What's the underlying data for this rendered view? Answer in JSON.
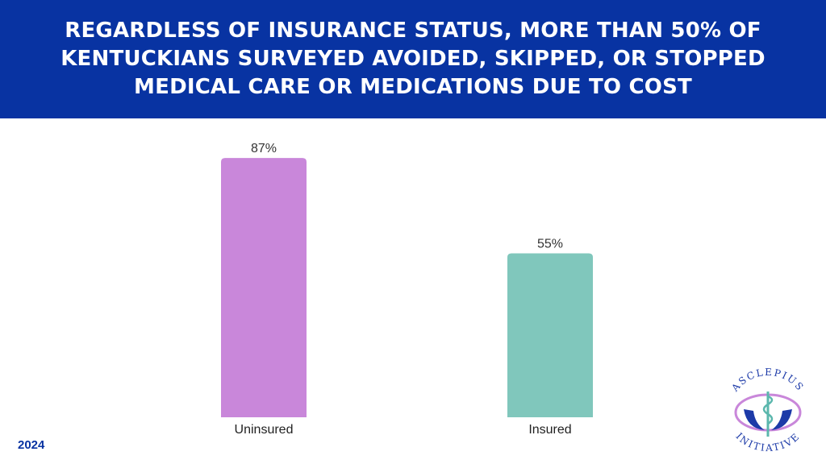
{
  "header": {
    "title": "REGARDLESS OF INSURANCE STATUS, MORE THAN 50% OF KENTUCKIANS SURVEYED AVOIDED, SKIPPED, OR STOPPED MEDICAL CARE OR MEDICATIONS DUE TO COST"
  },
  "chart_data": {
    "type": "bar",
    "categories": [
      "Uninsured",
      "Insured"
    ],
    "values": [
      87,
      55
    ],
    "value_labels": [
      "87%",
      "55%"
    ],
    "colors": [
      "#c987da",
      "#80c7bc"
    ],
    "ylim": [
      0,
      100
    ],
    "grid": false,
    "xlabel": "",
    "ylabel": ""
  },
  "footer": {
    "year": "2024"
  },
  "logo": {
    "top_text": "ASCLEPIUS",
    "bottom_text": "INITIATIVE",
    "icon": "rod-of-asclepius-hands-icon"
  }
}
